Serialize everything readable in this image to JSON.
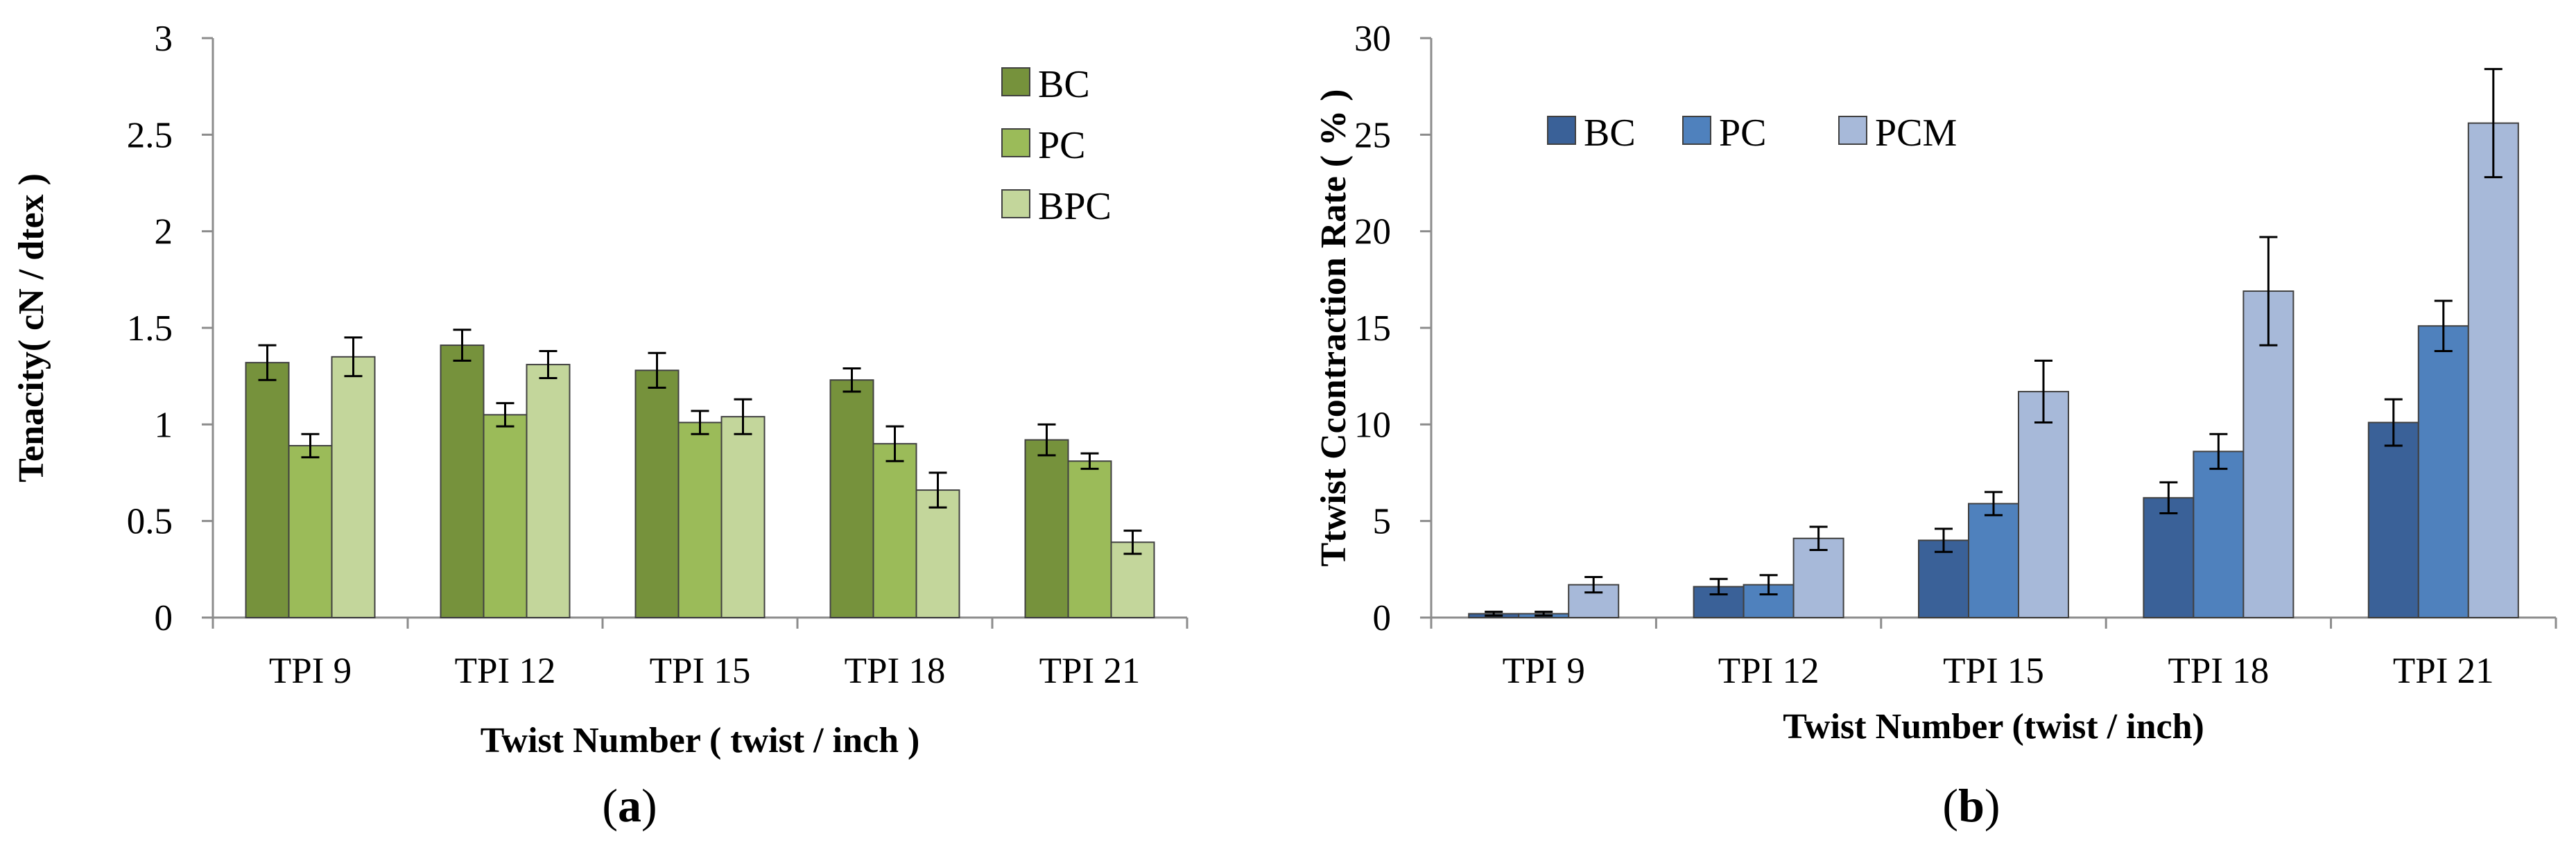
{
  "chart_data": [
    {
      "type": "bar",
      "panel": "a",
      "caption": {
        "open": "(",
        "letter": "a",
        "close": ")"
      },
      "title": "",
      "xlabel": "Twist Number ( twist / inch )",
      "ylabel": "Tenacity( cN / dtex )",
      "ylim": [
        0,
        3
      ],
      "yticks": [
        "0",
        "0.5",
        "1",
        "1.5",
        "2",
        "2.5",
        "3"
      ],
      "grid": false,
      "legend_position": "top-right",
      "categories": [
        "TPI 9",
        "TPI 12",
        "TPI 15",
        "TPI 18",
        "TPI 21"
      ],
      "series": [
        {
          "name": "BC",
          "color": "#76923c",
          "values": [
            1.32,
            1.41,
            1.28,
            1.23,
            0.92
          ],
          "errors": [
            0.09,
            0.08,
            0.09,
            0.06,
            0.08
          ]
        },
        {
          "name": "PC",
          "color": "#9bbb59",
          "values": [
            0.89,
            1.05,
            1.01,
            0.9,
            0.81
          ],
          "errors": [
            0.06,
            0.06,
            0.06,
            0.09,
            0.04
          ]
        },
        {
          "name": "BPC",
          "color": "#c3d69b",
          "values": [
            1.35,
            1.31,
            1.04,
            0.66,
            0.39
          ],
          "errors": [
            0.1,
            0.07,
            0.09,
            0.09,
            0.06
          ]
        }
      ]
    },
    {
      "type": "bar",
      "panel": "b",
      "caption": {
        "open": "(",
        "letter": "b",
        "close": ")"
      },
      "title": "",
      "xlabel": "Twist Number (twist / inch)",
      "ylabel": "Ttwist Ccontraction Rate ( % )",
      "ylim": [
        0,
        30
      ],
      "yticks": [
        "0",
        "5",
        "10",
        "15",
        "20",
        "25",
        "30"
      ],
      "grid": false,
      "legend_position": "top-left",
      "categories": [
        "TPI 9",
        "TPI 12",
        "TPI 15",
        "TPI 18",
        "TPI 21"
      ],
      "series": [
        {
          "name": "BC",
          "color": "#3a6198",
          "values": [
            0.2,
            1.6,
            4.0,
            6.2,
            10.1
          ],
          "errors": [
            0.1,
            0.4,
            0.6,
            0.8,
            1.2
          ]
        },
        {
          "name": "PC",
          "color": "#4f81bd",
          "values": [
            0.2,
            1.7,
            5.9,
            8.6,
            15.1
          ],
          "errors": [
            0.1,
            0.5,
            0.6,
            0.9,
            1.3
          ]
        },
        {
          "name": "PCM",
          "color": "#a7b9d9",
          "values": [
            1.7,
            4.1,
            11.7,
            16.9,
            25.6
          ],
          "errors": [
            0.4,
            0.6,
            1.6,
            2.8,
            2.8
          ]
        }
      ]
    }
  ]
}
